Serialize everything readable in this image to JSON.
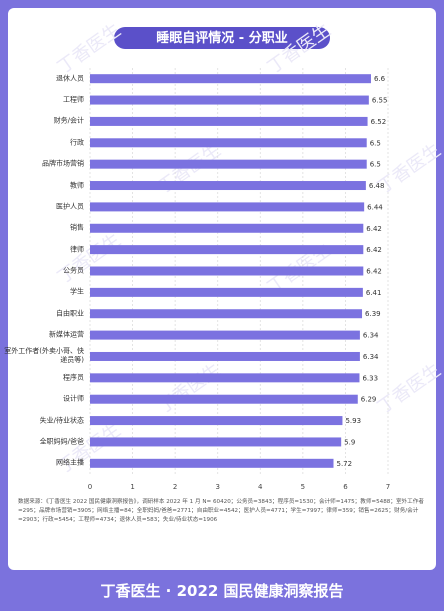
{
  "chart_data": {
    "type": "hbar",
    "title": "睡眠自评情况 - 分职业",
    "categories": [
      "退休人员",
      "工程师",
      "财务/会计",
      "行政",
      "品牌市场营销",
      "教师",
      "医护人员",
      "销售",
      "律师",
      "公务员",
      "学生",
      "自由职业",
      "新媒体运营",
      "室外工作者(外卖小哥、快递员等)",
      "程序员",
      "设计师",
      "失业/待业状态",
      "全职妈妈/爸爸",
      "网络主播"
    ],
    "values": [
      6.6,
      6.55,
      6.52,
      6.5,
      6.5,
      6.48,
      6.44,
      6.42,
      6.42,
      6.42,
      6.41,
      6.39,
      6.34,
      6.34,
      6.33,
      6.29,
      5.93,
      5.9,
      5.72
    ],
    "color": "#7b72e0",
    "xlim": [
      0,
      7
    ],
    "xticks": [
      0,
      1,
      2,
      3,
      4,
      5,
      6,
      7
    ],
    "grid": true,
    "source": "数据来源：《丁香医生 2022 国民健康洞察报告》，调研样本 2022 年 1 月 N= 60420；公务员=3843；程序员=1530；会计师=1475；教师=5488；室外工作者=295；品牌市场营销=3905；网络主播=84；全职妈妈/爸爸=2771；自由职业=4542；医护人员=4771；学生=7997；律师=359；销售=2625；财务/会计=2903；行政=5454；工程师=4734；退休人员=583；失业/待业状态=1906",
    "watermark": "丁香医生",
    "footer": "丁香医生 · 2022 国民健康洞察报告"
  }
}
